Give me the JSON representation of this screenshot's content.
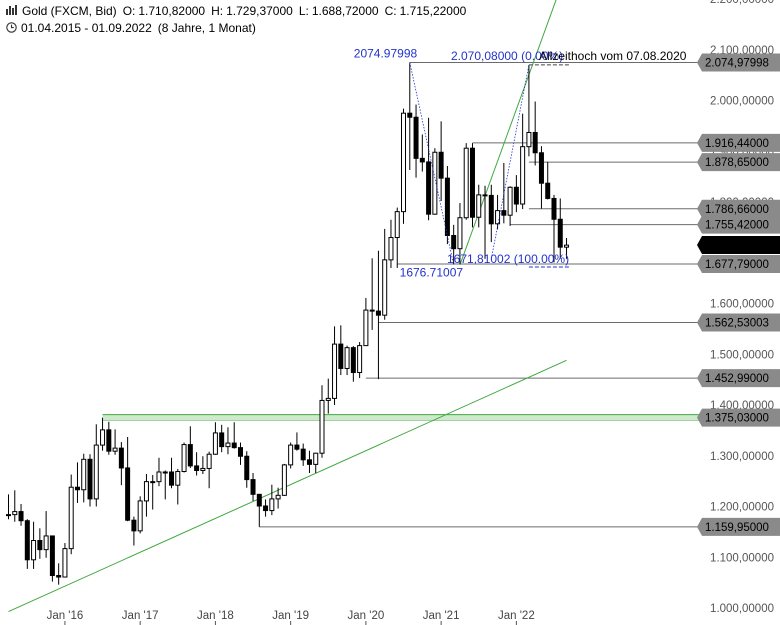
{
  "header": {
    "icon": "chart-bars-icon",
    "title": "Gold (FXCM, Bid)",
    "o_label": "O:",
    "o_value": "1.710,82000",
    "h_label": "H:",
    "h_value": "1.729,37000",
    "l_label": "L:",
    "l_value": "1.688,72000",
    "c_label": "C:",
    "c_value": "1.715,22000",
    "clock_icon": "clock-icon",
    "range": "01.04.2015 - 01.09.2022",
    "duration": "(8 Jahre, 1 Monat)"
  },
  "colors": {
    "up": "#ffffff",
    "down": "#000000",
    "candle_edge": "#000000",
    "green": "#3fa83f",
    "green_fill": "#cfe9cc",
    "blue": "#2233cc",
    "level_line": "#6b6b6b",
    "label_gray": "#8a8a8a",
    "label_dark": "#000000",
    "grid_text": "#555555"
  },
  "chart_data": {
    "type": "candlestick",
    "timeframe": "monthly",
    "title": "Gold (FXCM, Bid)",
    "x_tick_labels": [
      {
        "label": "Jan '16",
        "date": "2016-01"
      },
      {
        "label": "Jan '17",
        "date": "2017-01"
      },
      {
        "label": "Jan '18",
        "date": "2018-01"
      },
      {
        "label": "Jan '19",
        "date": "2019-01"
      },
      {
        "label": "Jan '20",
        "date": "2020-01"
      },
      {
        "label": "Jan '21",
        "date": "2021-01"
      },
      {
        "label": "Jan '22",
        "date": "2022-01"
      }
    ],
    "y_tick_labels": [
      {
        "value": 1000,
        "label": "1.000,00000"
      },
      {
        "value": 1100,
        "label": "1.100,00000"
      },
      {
        "value": 1200,
        "label": "1.200,00000"
      },
      {
        "value": 1300,
        "label": "1.300,00000"
      },
      {
        "value": 1400,
        "label": "1.400,00000"
      },
      {
        "value": 1500,
        "label": "1.500,00000"
      },
      {
        "value": 1600,
        "label": "1.600,00000"
      },
      {
        "value": 1800,
        "label": "1.800,00000"
      },
      {
        "value": 1900,
        "label": "1.900,00000"
      },
      {
        "value": 2000,
        "label": "2.000,00000"
      },
      {
        "value": 2100,
        "label": "2.100,00000"
      },
      {
        "value": 2200,
        "label": "2.200,00000"
      }
    ],
    "ylim": [
      990,
      2210
    ],
    "xlim": [
      "2015-04",
      "2022-09"
    ],
    "levels": [
      {
        "value": 2074.97998,
        "label": "2.074,97998",
        "style": "gray",
        "from": "2020-08"
      },
      {
        "value": 1916.44,
        "label": "1.916,44000",
        "style": "gray",
        "from": "2021-06"
      },
      {
        "value": 1878.65,
        "label": "1.878,65000",
        "style": "gray",
        "from": "2022-03"
      },
      {
        "value": 1786.66,
        "label": "1.786,66000",
        "style": "gray",
        "from": "2022-03"
      },
      {
        "value": 1755.42,
        "label": "1.755,42000",
        "style": "gray",
        "from": "2021-12"
      },
      {
        "value": 1715.22,
        "label": "1.715,22000",
        "style": "current",
        "from": null
      },
      {
        "value": 1677.79,
        "label": "1.677,79000",
        "style": "gray",
        "from": "2020-06"
      },
      {
        "value": 1562.53003,
        "label": "1.562,53003",
        "style": "gray",
        "from": "2020-03"
      },
      {
        "value": 1452.99,
        "label": "1.452,99000",
        "style": "gray",
        "from": "2020-01"
      },
      {
        "value": 1375.03,
        "label": "1.375,03000",
        "style": "green-zone",
        "from": "2016-07"
      },
      {
        "value": 1159.95,
        "label": "1.159,95000",
        "style": "gray",
        "from": "2018-08"
      }
    ],
    "trendlines": [
      {
        "color": "green",
        "from": {
          "date": "2015-04",
          "value": 993
        },
        "to": {
          "date": "2022-09",
          "value": 1488
        }
      },
      {
        "color": "green",
        "from": {
          "date": "2021-04",
          "value": 1676
        },
        "to": {
          "date": "2022-09",
          "value": 2255
        }
      }
    ],
    "fib_annotations": [
      {
        "label": "2074.97998",
        "date": "2020-08",
        "value": 2074.98
      },
      {
        "label": "1676.71007",
        "date": "2021-03",
        "value": 1676.71
      },
      {
        "label": "2.070,08000 (0.00%)",
        "date": "2022-03",
        "value": 2070.08
      },
      {
        "label": "1671,81002 (100.00%)",
        "date": "2022-03",
        "value": 1671.81
      }
    ],
    "text_annotation": {
      "label": "Allzeithoch vom 07.08.2020",
      "date": "2022-04",
      "value": 2080
    },
    "candles": [
      {
        "d": "2015-04",
        "o": 1183,
        "h": 1224,
        "l": 1175,
        "c": 1184
      },
      {
        "d": "2015-05",
        "o": 1184,
        "h": 1232,
        "l": 1170,
        "c": 1190
      },
      {
        "d": "2015-06",
        "o": 1190,
        "h": 1205,
        "l": 1162,
        "c": 1172
      },
      {
        "d": "2015-07",
        "o": 1172,
        "h": 1175,
        "l": 1077,
        "c": 1095
      },
      {
        "d": "2015-08",
        "o": 1095,
        "h": 1170,
        "l": 1077,
        "c": 1133
      },
      {
        "d": "2015-09",
        "o": 1133,
        "h": 1157,
        "l": 1097,
        "c": 1115
      },
      {
        "d": "2015-10",
        "o": 1115,
        "h": 1191,
        "l": 1099,
        "c": 1142
      },
      {
        "d": "2015-11",
        "o": 1142,
        "h": 1142,
        "l": 1052,
        "c": 1064
      },
      {
        "d": "2015-12",
        "o": 1064,
        "h": 1088,
        "l": 1046,
        "c": 1061
      },
      {
        "d": "2016-01",
        "o": 1061,
        "h": 1128,
        "l": 1062,
        "c": 1117
      },
      {
        "d": "2016-02",
        "o": 1117,
        "h": 1263,
        "l": 1106,
        "c": 1238
      },
      {
        "d": "2016-03",
        "o": 1238,
        "h": 1287,
        "l": 1207,
        "c": 1233
      },
      {
        "d": "2016-04",
        "o": 1233,
        "h": 1304,
        "l": 1208,
        "c": 1293
      },
      {
        "d": "2016-05",
        "o": 1293,
        "h": 1303,
        "l": 1200,
        "c": 1215
      },
      {
        "d": "2016-06",
        "o": 1215,
        "h": 1362,
        "l": 1200,
        "c": 1321
      },
      {
        "d": "2016-07",
        "o": 1321,
        "h": 1375,
        "l": 1310,
        "c": 1351
      },
      {
        "d": "2016-08",
        "o": 1351,
        "h": 1367,
        "l": 1302,
        "c": 1309
      },
      {
        "d": "2016-09",
        "o": 1309,
        "h": 1352,
        "l": 1302,
        "c": 1315
      },
      {
        "d": "2016-10",
        "o": 1315,
        "h": 1327,
        "l": 1242,
        "c": 1276
      },
      {
        "d": "2016-11",
        "o": 1276,
        "h": 1337,
        "l": 1171,
        "c": 1173
      },
      {
        "d": "2016-12",
        "o": 1173,
        "h": 1180,
        "l": 1123,
        "c": 1152
      },
      {
        "d": "2017-01",
        "o": 1152,
        "h": 1220,
        "l": 1147,
        "c": 1211
      },
      {
        "d": "2017-02",
        "o": 1211,
        "h": 1264,
        "l": 1180,
        "c": 1249
      },
      {
        "d": "2017-03",
        "o": 1249,
        "h": 1262,
        "l": 1194,
        "c": 1249
      },
      {
        "d": "2017-04",
        "o": 1249,
        "h": 1296,
        "l": 1240,
        "c": 1268
      },
      {
        "d": "2017-05",
        "o": 1268,
        "h": 1271,
        "l": 1214,
        "c": 1268
      },
      {
        "d": "2017-06",
        "o": 1268,
        "h": 1296,
        "l": 1236,
        "c": 1242
      },
      {
        "d": "2017-07",
        "o": 1242,
        "h": 1274,
        "l": 1204,
        "c": 1269
      },
      {
        "d": "2017-08",
        "o": 1269,
        "h": 1326,
        "l": 1267,
        "c": 1322
      },
      {
        "d": "2017-09",
        "o": 1322,
        "h": 1358,
        "l": 1276,
        "c": 1280
      },
      {
        "d": "2017-10",
        "o": 1280,
        "h": 1307,
        "l": 1261,
        "c": 1271
      },
      {
        "d": "2017-11",
        "o": 1271,
        "h": 1299,
        "l": 1264,
        "c": 1275
      },
      {
        "d": "2017-12",
        "o": 1275,
        "h": 1308,
        "l": 1236,
        "c": 1303
      },
      {
        "d": "2018-01",
        "o": 1303,
        "h": 1366,
        "l": 1302,
        "c": 1345
      },
      {
        "d": "2018-02",
        "o": 1345,
        "h": 1361,
        "l": 1307,
        "c": 1318
      },
      {
        "d": "2018-03",
        "o": 1318,
        "h": 1356,
        "l": 1303,
        "c": 1325
      },
      {
        "d": "2018-04",
        "o": 1325,
        "h": 1366,
        "l": 1314,
        "c": 1316
      },
      {
        "d": "2018-05",
        "o": 1316,
        "h": 1326,
        "l": 1282,
        "c": 1299
      },
      {
        "d": "2018-06",
        "o": 1299,
        "h": 1309,
        "l": 1237,
        "c": 1253
      },
      {
        "d": "2018-07",
        "o": 1253,
        "h": 1266,
        "l": 1211,
        "c": 1224
      },
      {
        "d": "2018-08",
        "o": 1224,
        "h": 1220,
        "l": 1160,
        "c": 1201
      },
      {
        "d": "2018-09",
        "o": 1201,
        "h": 1214,
        "l": 1180,
        "c": 1192
      },
      {
        "d": "2018-10",
        "o": 1192,
        "h": 1243,
        "l": 1183,
        "c": 1215
      },
      {
        "d": "2018-11",
        "o": 1215,
        "h": 1237,
        "l": 1196,
        "c": 1222
      },
      {
        "d": "2018-12",
        "o": 1222,
        "h": 1284,
        "l": 1221,
        "c": 1282
      },
      {
        "d": "2019-01",
        "o": 1282,
        "h": 1326,
        "l": 1275,
        "c": 1321
      },
      {
        "d": "2019-02",
        "o": 1321,
        "h": 1346,
        "l": 1310,
        "c": 1313
      },
      {
        "d": "2019-03",
        "o": 1313,
        "h": 1324,
        "l": 1280,
        "c": 1292
      },
      {
        "d": "2019-04",
        "o": 1292,
        "h": 1310,
        "l": 1266,
        "c": 1283
      },
      {
        "d": "2019-05",
        "o": 1283,
        "h": 1306,
        "l": 1266,
        "c": 1305
      },
      {
        "d": "2019-06",
        "o": 1305,
        "h": 1439,
        "l": 1296,
        "c": 1409
      },
      {
        "d": "2019-07",
        "o": 1409,
        "h": 1452,
        "l": 1383,
        "c": 1413
      },
      {
        "d": "2019-08",
        "o": 1413,
        "h": 1555,
        "l": 1400,
        "c": 1520
      },
      {
        "d": "2019-09",
        "o": 1520,
        "h": 1557,
        "l": 1459,
        "c": 1472
      },
      {
        "d": "2019-10",
        "o": 1472,
        "h": 1517,
        "l": 1459,
        "c": 1513
      },
      {
        "d": "2019-11",
        "o": 1513,
        "h": 1516,
        "l": 1446,
        "c": 1464
      },
      {
        "d": "2019-12",
        "o": 1464,
        "h": 1524,
        "l": 1453,
        "c": 1517
      },
      {
        "d": "2020-01",
        "o": 1517,
        "h": 1611,
        "l": 1517,
        "c": 1587
      },
      {
        "d": "2020-02",
        "o": 1587,
        "h": 1689,
        "l": 1548,
        "c": 1585
      },
      {
        "d": "2020-03",
        "o": 1585,
        "h": 1704,
        "l": 1451,
        "c": 1577
      },
      {
        "d": "2020-04",
        "o": 1577,
        "h": 1747,
        "l": 1568,
        "c": 1686
      },
      {
        "d": "2020-05",
        "o": 1686,
        "h": 1765,
        "l": 1670,
        "c": 1730
      },
      {
        "d": "2020-06",
        "o": 1730,
        "h": 1789,
        "l": 1670,
        "c": 1781
      },
      {
        "d": "2020-07",
        "o": 1781,
        "h": 1984,
        "l": 1757,
        "c": 1975
      },
      {
        "d": "2020-08",
        "o": 1975,
        "h": 2075,
        "l": 1863,
        "c": 1967
      },
      {
        "d": "2020-09",
        "o": 1967,
        "h": 1992,
        "l": 1848,
        "c": 1886
      },
      {
        "d": "2020-10",
        "o": 1886,
        "h": 1933,
        "l": 1860,
        "c": 1879
      },
      {
        "d": "2020-11",
        "o": 1879,
        "h": 1966,
        "l": 1764,
        "c": 1776
      },
      {
        "d": "2020-12",
        "o": 1776,
        "h": 1906,
        "l": 1775,
        "c": 1898
      },
      {
        "d": "2021-01",
        "o": 1898,
        "h": 1959,
        "l": 1802,
        "c": 1847
      },
      {
        "d": "2021-02",
        "o": 1847,
        "h": 1871,
        "l": 1717,
        "c": 1734
      },
      {
        "d": "2021-03",
        "o": 1734,
        "h": 1755,
        "l": 1677,
        "c": 1708
      },
      {
        "d": "2021-04",
        "o": 1708,
        "h": 1798,
        "l": 1678,
        "c": 1769
      },
      {
        "d": "2021-05",
        "o": 1769,
        "h": 1916,
        "l": 1765,
        "c": 1906
      },
      {
        "d": "2021-06",
        "o": 1906,
        "h": 1916,
        "l": 1750,
        "c": 1770
      },
      {
        "d": "2021-07",
        "o": 1770,
        "h": 1834,
        "l": 1750,
        "c": 1814
      },
      {
        "d": "2021-08",
        "o": 1814,
        "h": 1832,
        "l": 1688,
        "c": 1813
      },
      {
        "d": "2021-09",
        "o": 1813,
        "h": 1834,
        "l": 1721,
        "c": 1757
      },
      {
        "d": "2021-10",
        "o": 1757,
        "h": 1814,
        "l": 1746,
        "c": 1783
      },
      {
        "d": "2021-11",
        "o": 1783,
        "h": 1877,
        "l": 1758,
        "c": 1774
      },
      {
        "d": "2021-12",
        "o": 1774,
        "h": 1831,
        "l": 1753,
        "c": 1829
      },
      {
        "d": "2022-01",
        "o": 1829,
        "h": 1853,
        "l": 1780,
        "c": 1796
      },
      {
        "d": "2022-02",
        "o": 1796,
        "h": 1974,
        "l": 1786,
        "c": 1909
      },
      {
        "d": "2022-03",
        "o": 1909,
        "h": 2070,
        "l": 1890,
        "c": 1937
      },
      {
        "d": "2022-04",
        "o": 1937,
        "h": 1998,
        "l": 1872,
        "c": 1897
      },
      {
        "d": "2022-05",
        "o": 1897,
        "h": 1910,
        "l": 1787,
        "c": 1837
      },
      {
        "d": "2022-06",
        "o": 1837,
        "h": 1879,
        "l": 1805,
        "c": 1807
      },
      {
        "d": "2022-07",
        "o": 1807,
        "h": 1814,
        "l": 1681,
        "c": 1766
      },
      {
        "d": "2022-08",
        "o": 1766,
        "h": 1807,
        "l": 1688,
        "c": 1711
      },
      {
        "d": "2022-09",
        "o": 1711,
        "h": 1729,
        "l": 1688,
        "c": 1715
      }
    ]
  }
}
